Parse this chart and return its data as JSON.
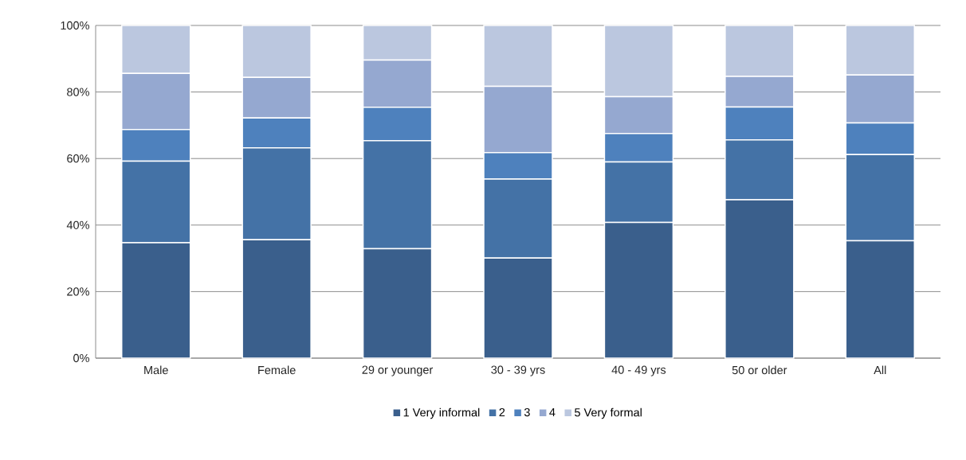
{
  "chart_data": {
    "type": "bar",
    "stacked": true,
    "categories": [
      "Male",
      "Female",
      "29 or younger",
      "30 - 39 yrs",
      "40 - 49 yrs",
      "50 or older",
      "All"
    ],
    "series": [
      {
        "name": "1 Very informal",
        "color": "#3a5f8c",
        "values": [
          34.7,
          35.6,
          32.9,
          30.1,
          40.8,
          47.6,
          35.3
        ]
      },
      {
        "name": "2",
        "color": "#4472a6",
        "values": [
          24.5,
          27.6,
          32.5,
          23.7,
          18.2,
          18.0,
          25.9
        ]
      },
      {
        "name": "3",
        "color": "#4e81bd",
        "values": [
          9.5,
          9.0,
          10.0,
          8.0,
          8.5,
          9.9,
          9.5
        ]
      },
      {
        "name": "4",
        "color": "#95a8d0",
        "values": [
          16.9,
          12.2,
          14.2,
          19.9,
          11.1,
          9.2,
          14.4
        ]
      },
      {
        "name": "5 Very formal",
        "color": "#bbc7df",
        "values": [
          14.4,
          15.6,
          10.4,
          18.3,
          21.4,
          15.3,
          14.9
        ]
      }
    ],
    "ylim": [
      0,
      100
    ],
    "yticks": [
      {
        "value": 0,
        "label": "0%"
      },
      {
        "value": 20,
        "label": "20%"
      },
      {
        "value": 40,
        "label": "40%"
      },
      {
        "value": 60,
        "label": "60%"
      },
      {
        "value": 80,
        "label": "80%"
      },
      {
        "value": 100,
        "label": "100%"
      }
    ],
    "grid": "y",
    "legend": "bottom"
  }
}
